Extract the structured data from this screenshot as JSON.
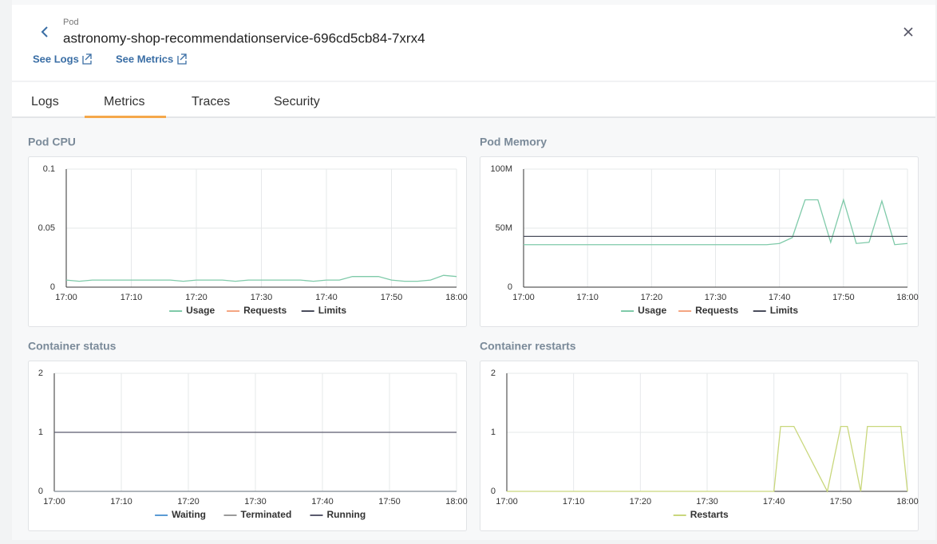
{
  "header": {
    "kind": "Pod",
    "title": "astronomy-shop-recommendationservice-696cd5cb84-7xrx4",
    "links": [
      "See Logs",
      "See Metrics"
    ]
  },
  "tabs": [
    "Logs",
    "Metrics",
    "Traces",
    "Security"
  ],
  "chart_data": [
    {
      "type": "line",
      "title": "Pod CPU",
      "x": [
        "17:00",
        "17:02",
        "17:04",
        "17:06",
        "17:08",
        "17:10",
        "17:12",
        "17:14",
        "17:16",
        "17:18",
        "17:20",
        "17:22",
        "17:24",
        "17:26",
        "17:28",
        "17:30",
        "17:32",
        "17:34",
        "17:36",
        "17:38",
        "17:40",
        "17:42",
        "17:44",
        "17:46",
        "17:48",
        "17:50",
        "17:52",
        "17:54",
        "17:56",
        "17:58",
        "18:00"
      ],
      "xlim": [
        "17:00",
        "18:00"
      ],
      "xticks": [
        "17:00",
        "17:10",
        "17:20",
        "17:30",
        "17:40",
        "17:50",
        "18:00"
      ],
      "ylim": [
        0,
        0.1
      ],
      "yticks": [
        0,
        0.05,
        0.1
      ],
      "grid": true,
      "series": [
        {
          "name": "Usage",
          "color": "#7fcaa9",
          "values": [
            0.006,
            0.005,
            0.006,
            0.006,
            0.006,
            0.006,
            0.006,
            0.006,
            0.006,
            0.005,
            0.006,
            0.006,
            0.006,
            0.005,
            0.006,
            0.006,
            0.006,
            0.006,
            0.006,
            0.005,
            0.006,
            0.006,
            0.009,
            0.009,
            0.009,
            0.006,
            0.005,
            0.005,
            0.006,
            0.01,
            0.009
          ]
        },
        {
          "name": "Requests",
          "color": "#f4a582",
          "values": [
            null,
            null,
            null,
            null,
            null,
            null,
            null,
            null,
            null,
            null,
            null,
            null,
            null,
            null,
            null,
            null,
            null,
            null,
            null,
            null,
            null,
            null,
            null,
            null,
            null,
            null,
            null,
            null,
            null,
            null,
            null
          ]
        },
        {
          "name": "Limits",
          "color": "#4a4d5c",
          "values": [
            null,
            null,
            null,
            null,
            null,
            null,
            null,
            null,
            null,
            null,
            null,
            null,
            null,
            null,
            null,
            null,
            null,
            null,
            null,
            null,
            null,
            null,
            null,
            null,
            null,
            null,
            null,
            null,
            null,
            null,
            null
          ]
        }
      ]
    },
    {
      "type": "line",
      "title": "Pod Memory",
      "x": [
        "17:00",
        "17:02",
        "17:04",
        "17:06",
        "17:08",
        "17:10",
        "17:12",
        "17:14",
        "17:16",
        "17:18",
        "17:20",
        "17:22",
        "17:24",
        "17:26",
        "17:28",
        "17:30",
        "17:32",
        "17:34",
        "17:36",
        "17:38",
        "17:40",
        "17:42",
        "17:44",
        "17:46",
        "17:48",
        "17:50",
        "17:52",
        "17:54",
        "17:56",
        "17:58",
        "18:00"
      ],
      "xlim": [
        "17:00",
        "18:00"
      ],
      "xticks": [
        "17:00",
        "17:10",
        "17:20",
        "17:30",
        "17:40",
        "17:50",
        "18:00"
      ],
      "ylim": [
        0,
        100000000
      ],
      "yticks": [
        0,
        {
          "value": 50000000,
          "label": "50M"
        },
        {
          "value": 100000000,
          "label": "100M"
        }
      ],
      "grid": true,
      "series": [
        {
          "name": "Usage",
          "color": "#7fcaa9",
          "values": [
            36000000,
            36000000,
            36000000,
            36000000,
            36000000,
            36000000,
            36000000,
            36000000,
            36000000,
            36000000,
            36000000,
            36000000,
            36000000,
            36000000,
            36000000,
            36000000,
            36000000,
            36000000,
            36000000,
            36000000,
            37000000,
            42000000,
            74000000,
            74000000,
            38000000,
            74000000,
            37000000,
            38000000,
            73000000,
            36000000,
            37000000
          ]
        },
        {
          "name": "Requests",
          "color": "#f4a582",
          "values": [
            null,
            null,
            null,
            null,
            null,
            null,
            null,
            null,
            null,
            null,
            null,
            null,
            null,
            null,
            null,
            null,
            null,
            null,
            null,
            null,
            null,
            null,
            null,
            null,
            null,
            null,
            null,
            null,
            null,
            null,
            null
          ]
        },
        {
          "name": "Limits",
          "color": "#4a4d5c",
          "values": [
            43000000,
            43000000,
            43000000,
            43000000,
            43000000,
            43000000,
            43000000,
            43000000,
            43000000,
            43000000,
            43000000,
            43000000,
            43000000,
            43000000,
            43000000,
            43000000,
            43000000,
            43000000,
            43000000,
            43000000,
            43000000,
            43000000,
            43000000,
            43000000,
            43000000,
            43000000,
            43000000,
            43000000,
            43000000,
            43000000,
            43000000
          ]
        }
      ]
    },
    {
      "type": "line",
      "title": "Container status",
      "x": [
        "17:00",
        "17:10",
        "17:20",
        "17:30",
        "17:40",
        "17:50",
        "18:00"
      ],
      "xlim": [
        "17:00",
        "18:00"
      ],
      "xticks": [
        "17:00",
        "17:10",
        "17:20",
        "17:30",
        "17:40",
        "17:50",
        "18:00"
      ],
      "ylim": [
        0,
        2
      ],
      "yticks": [
        0,
        1,
        2
      ],
      "grid": true,
      "series": [
        {
          "name": "Waiting",
          "color": "#5b9bd5",
          "values": [
            0,
            0,
            0,
            0,
            0,
            0,
            0
          ]
        },
        {
          "name": "Terminated",
          "color": "#9a9a9a",
          "values": [
            0,
            0,
            0,
            0,
            0,
            0,
            0
          ]
        },
        {
          "name": "Running",
          "color": "#5a5b6e",
          "values": [
            1,
            1,
            1,
            1,
            1,
            1,
            1
          ]
        }
      ]
    },
    {
      "type": "line",
      "title": "Container restarts",
      "x": [
        "17:00",
        "17:10",
        "17:20",
        "17:30",
        "17:40",
        "17:41",
        "17:43",
        "17:48",
        "17:50",
        "17:51",
        "17:53",
        "17:54",
        "17:56",
        "17:59",
        "18:00"
      ],
      "xlim": [
        "17:00",
        "18:00"
      ],
      "xticks": [
        "17:00",
        "17:10",
        "17:20",
        "17:30",
        "17:40",
        "17:50",
        "18:00"
      ],
      "ylim": [
        0,
        2
      ],
      "yticks": [
        0,
        1,
        2
      ],
      "grid": true,
      "series": [
        {
          "name": "Restarts",
          "color": "#c9d77c",
          "values": [
            0,
            0,
            0,
            0,
            0,
            1.1,
            1.1,
            0,
            1.1,
            1.1,
            0,
            1.1,
            1.1,
            1.1,
            0
          ]
        }
      ]
    }
  ]
}
